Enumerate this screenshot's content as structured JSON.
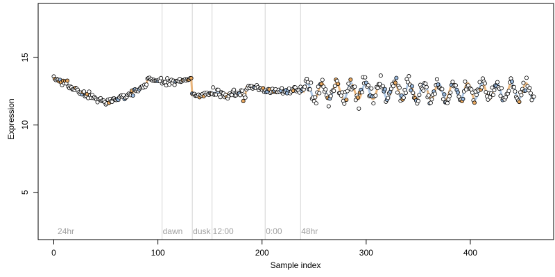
{
  "chart_data": {
    "type": "scatter",
    "title": "",
    "xlabel": "Sample index",
    "ylabel": "Expression",
    "xlim": [
      -15,
      480
    ],
    "ylim": [
      1.5,
      19
    ],
    "x_ticks": [
      0,
      100,
      200,
      300,
      400
    ],
    "y_ticks": [
      5,
      10,
      15
    ],
    "grid": false,
    "phase_lines": [
      {
        "x": 3,
        "label": "24hr",
        "line": false
      },
      {
        "x": 104,
        "label": "dawn",
        "line": true
      },
      {
        "x": 133,
        "label": "dusk",
        "line": true
      },
      {
        "x": 152,
        "label": "12:00",
        "line": true
      },
      {
        "x": 203,
        "label": "0:00",
        "line": true
      },
      {
        "x": 237,
        "label": "48hr",
        "line": true
      }
    ],
    "segments": [
      {
        "start": 0,
        "end": 10,
        "from": 13.5,
        "to": 13.1,
        "noise": 0.15
      },
      {
        "start": 10,
        "end": 32,
        "from": 13.1,
        "to": 12.2,
        "noise": 0.25
      },
      {
        "start": 32,
        "end": 52,
        "from": 12.2,
        "to": 11.6,
        "noise": 0.2
      },
      {
        "start": 52,
        "end": 70,
        "from": 11.7,
        "to": 12.2,
        "noise": 0.2
      },
      {
        "start": 70,
        "end": 90,
        "from": 12.2,
        "to": 13.0,
        "noise": 0.25
      },
      {
        "start": 90,
        "end": 104,
        "from": 13.4,
        "to": 13.3,
        "noise": 0.15
      },
      {
        "start": 104,
        "end": 133,
        "from": 13.1,
        "to": 13.4,
        "noise": 0.2
      },
      {
        "start": 133,
        "end": 152,
        "from": 12.2,
        "to": 12.3,
        "noise": 0.15
      },
      {
        "start": 152,
        "end": 185,
        "from": 12.4,
        "to": 12.2,
        "noise": 0.35
      },
      {
        "start": 185,
        "end": 203,
        "from": 12.8,
        "to": 12.6,
        "noise": 0.2
      },
      {
        "start": 203,
        "end": 240,
        "from": 12.5,
        "to": 12.6,
        "noise": 0.2
      },
      {
        "start": 240,
        "end": 462,
        "from": 12.5,
        "to": 12.5,
        "noise": 0.45,
        "oscillation": 0.6,
        "period": 14
      }
    ],
    "n_points": 462,
    "series": [
      {
        "name": "",
        "fill": "#ffffff",
        "stroke": "#000000"
      },
      {
        "name": "",
        "fill": "#e8a860",
        "stroke": "#000000"
      },
      {
        "name": "",
        "fill": "#9bbbe0",
        "stroke": "#000000"
      }
    ],
    "colors": {
      "fit_orange": "#e8a860",
      "fit_blue": "#9bbbe0",
      "phase_line": "#d3d3d3",
      "phase_label": "#a0a0a0"
    }
  }
}
